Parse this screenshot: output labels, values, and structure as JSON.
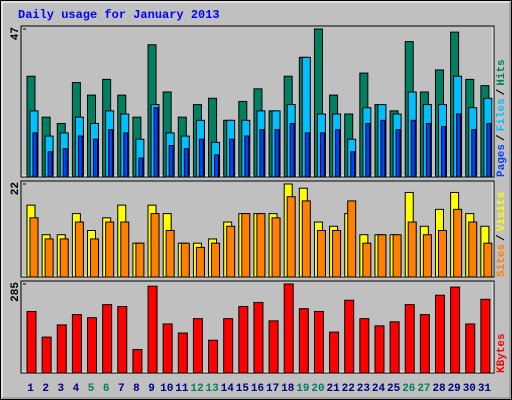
{
  "chart_data": [
    {
      "type": "bar",
      "title": "Daily usage for January 2013",
      "ylim": [
        0,
        47
      ],
      "yticks": [
        47
      ],
      "legend_separator": "/",
      "series": [
        {
          "name": "Pages",
          "color": "#0040ff",
          "values": [
            14,
            8,
            9,
            13,
            12,
            15,
            14,
            6,
            22,
            10,
            9,
            12,
            7,
            12,
            13,
            15,
            15,
            17,
            14,
            14,
            15,
            8,
            17,
            18,
            15,
            18,
            17,
            16,
            20,
            15,
            17
          ]
        },
        {
          "name": "Files",
          "color": "#00c0ff",
          "values": [
            21,
            13,
            14,
            19,
            17,
            21,
            20,
            12,
            23,
            14,
            13,
            18,
            11,
            18,
            18,
            21,
            21,
            23,
            38,
            20,
            20,
            12,
            22,
            23,
            20,
            27,
            23,
            23,
            32,
            22,
            25
          ]
        },
        {
          "name": "Hits",
          "color": "#008060",
          "values": [
            32,
            19,
            17,
            30,
            26,
            31,
            26,
            19,
            42,
            27,
            19,
            23,
            25,
            18,
            24,
            28,
            21,
            32,
            38,
            47,
            26,
            20,
            33,
            23,
            21,
            43,
            27,
            34,
            46,
            31,
            29
          ]
        }
      ]
    },
    {
      "type": "bar",
      "ylim": [
        0,
        22
      ],
      "yticks": [
        22
      ],
      "legend_separator": "/",
      "series": [
        {
          "name": "Sites",
          "color": "#ff8000",
          "values": [
            14,
            9,
            9,
            13,
            9,
            13,
            13,
            8,
            15,
            11,
            8,
            7,
            8,
            12,
            15,
            15,
            14,
            19,
            18,
            11,
            11,
            18,
            8,
            10,
            10,
            13,
            10,
            11,
            16,
            13,
            8
          ]
        },
        {
          "name": "Visits",
          "color": "#ffff00",
          "values": [
            17,
            10,
            10,
            15,
            11,
            14,
            17,
            8,
            17,
            15,
            8,
            8,
            9,
            13,
            15,
            15,
            15,
            22,
            21,
            13,
            12,
            15,
            10,
            10,
            10,
            20,
            12,
            16,
            20,
            15,
            12
          ]
        }
      ]
    },
    {
      "type": "bar",
      "ylim": [
        0,
        285
      ],
      "yticks": [
        285
      ],
      "categories": [
        "1",
        "2",
        "3",
        "4",
        "5",
        "6",
        "7",
        "8",
        "9",
        "10",
        "11",
        "12",
        "13",
        "14",
        "15",
        "16",
        "17",
        "18",
        "19",
        "20",
        "21",
        "22",
        "23",
        "24",
        "25",
        "26",
        "27",
        "28",
        "29",
        "30",
        "31"
      ],
      "category_colors": [
        "#000080",
        "#000080",
        "#000080",
        "#000080",
        "#008060",
        "#008060",
        "#000080",
        "#000080",
        "#000080",
        "#000080",
        "#000080",
        "#008060",
        "#008060",
        "#000080",
        "#000080",
        "#000080",
        "#000080",
        "#000080",
        "#008060",
        "#008060",
        "#000080",
        "#000080",
        "#000080",
        "#000080",
        "#000080",
        "#008060",
        "#008060",
        "#000080",
        "#000080",
        "#000080",
        "#000080"
      ],
      "series": [
        {
          "name": "KBytes",
          "color": "#ff0000",
          "values": [
            197,
            115,
            154,
            187,
            177,
            219,
            213,
            75,
            278,
            157,
            128,
            174,
            105,
            174,
            213,
            226,
            167,
            285,
            206,
            197,
            131,
            233,
            174,
            151,
            164,
            219,
            187,
            249,
            275,
            157,
            236
          ]
        }
      ]
    }
  ]
}
